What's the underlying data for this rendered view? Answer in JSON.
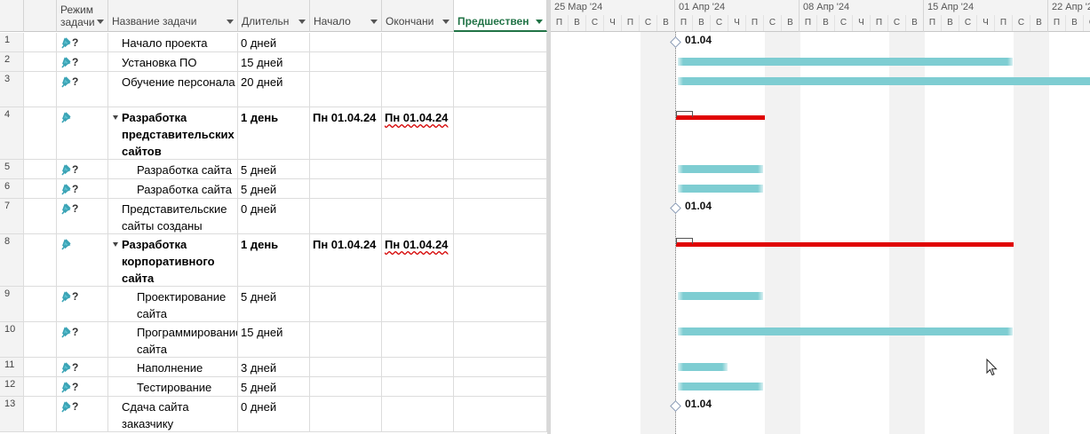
{
  "columns": {
    "mode": "Режим задачи",
    "name": "Название задачи",
    "duration": "Длительн",
    "start": "Начало",
    "finish": "Окончани",
    "predecessors": "Предшествен"
  },
  "rows": [
    {
      "id": "1",
      "name": "Начало проекта",
      "duration": "0 дней",
      "start": "",
      "finish": ""
    },
    {
      "id": "2",
      "name": "Установка ПО",
      "duration": "15 дней",
      "start": "",
      "finish": ""
    },
    {
      "id": "3",
      "name": "Обучение персонала",
      "duration": "20 дней",
      "start": "",
      "finish": ""
    },
    {
      "id": "4",
      "name": "Разработка представительских сайтов",
      "duration": "1 день",
      "start": "Пн 01.04.24",
      "finish": "Пн 01.04.24"
    },
    {
      "id": "5",
      "name": "Разработка сайта",
      "duration": "5 дней",
      "start": "",
      "finish": ""
    },
    {
      "id": "6",
      "name": "Разработка сайта",
      "duration": "5 дней",
      "start": "",
      "finish": ""
    },
    {
      "id": "7",
      "name": "Представительские сайты созданы",
      "duration": "0 дней",
      "start": "",
      "finish": ""
    },
    {
      "id": "8",
      "name": "Разработка корпоративного сайта",
      "duration": "1 день",
      "start": "Пн 01.04.24",
      "finish": "Пн 01.04.24"
    },
    {
      "id": "9",
      "name": "Проектирование сайта",
      "duration": "5 дней",
      "start": "",
      "finish": ""
    },
    {
      "id": "10",
      "name": "Программирование сайта",
      "duration": "15 дней",
      "start": "",
      "finish": ""
    },
    {
      "id": "11",
      "name": "Наполнение сайта",
      "duration": "3 дней",
      "start": "",
      "finish": ""
    },
    {
      "id": "12",
      "name": "Тестирование сайта",
      "duration": "5 дней",
      "start": "",
      "finish": ""
    },
    {
      "id": "13",
      "name": "Сдача сайта заказчику",
      "duration": "0 дней",
      "start": "",
      "finish": ""
    }
  ],
  "timescale": {
    "weeks": [
      "25 Мар '24",
      "01 Апр '24",
      "08 Апр '24",
      "15 Апр '24",
      "22 Апр '24"
    ],
    "days": [
      "П",
      "В",
      "С",
      "Ч",
      "П",
      "С",
      "В"
    ]
  },
  "milestones": {
    "m1": "01.04",
    "m7": "01.04",
    "m13": "01.04"
  },
  "colors": {
    "task_bar": "#7ecdd2",
    "summary_bar": "#e00000",
    "active_header": "#217346",
    "info_icon": "#2e72c4"
  }
}
